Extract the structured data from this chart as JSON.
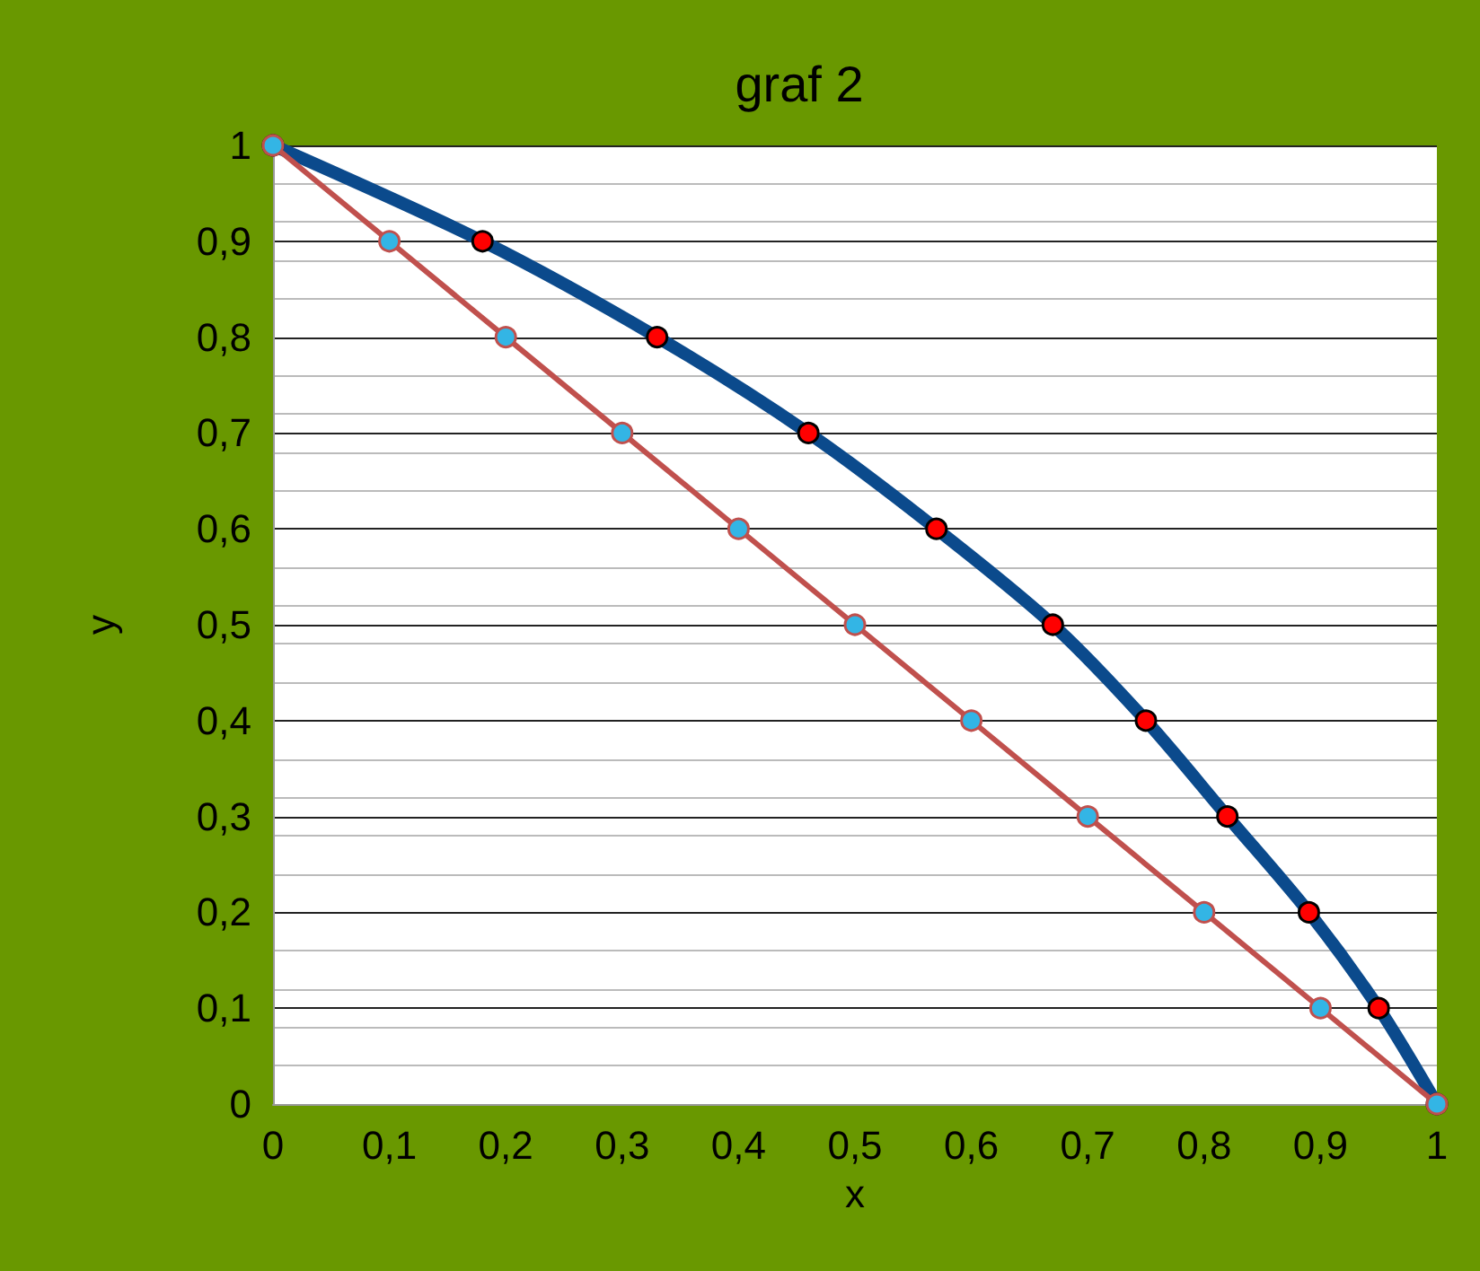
{
  "chart_data": {
    "type": "line",
    "title": "graf 2",
    "xlabel": "x",
    "ylabel": "y",
    "xlim": [
      0,
      1
    ],
    "ylim": [
      0,
      1
    ],
    "xticks": [
      0,
      {
        "value": 0.1,
        "label": "0,1"
      },
      {
        "value": 0.2,
        "label": "0,2"
      },
      {
        "value": 0.3,
        "label": "0,3"
      },
      {
        "value": 0.4,
        "label": "0,4"
      },
      {
        "value": 0.5,
        "label": "0,5"
      },
      {
        "value": 0.6,
        "label": "0,6"
      },
      {
        "value": 0.7,
        "label": "0,7"
      },
      {
        "value": 0.8,
        "label": "0,8"
      },
      {
        "value": 0.9,
        "label": "0,9"
      },
      1
    ],
    "yticks": [
      0,
      {
        "value": 0.1,
        "label": "0,1"
      },
      {
        "value": 0.2,
        "label": "0,2"
      },
      {
        "value": 0.3,
        "label": "0,3"
      },
      {
        "value": 0.4,
        "label": "0,4"
      },
      {
        "value": 0.5,
        "label": "0,5"
      },
      {
        "value": 0.6,
        "label": "0,6"
      },
      {
        "value": 0.7,
        "label": "0,7"
      },
      {
        "value": 0.8,
        "label": "0,8"
      },
      {
        "value": 0.9,
        "label": "0,9"
      },
      1
    ],
    "grid": "y",
    "marker": "circle",
    "line_style": "solid",
    "series": [
      {
        "color": "#0b4a8c",
        "x": [
          0,
          0.18,
          0.33,
          0.46,
          0.57,
          0.67,
          0.75,
          0.82,
          0.89,
          0.95,
          1
        ],
        "values": [
          1,
          0.9,
          0.8,
          0.7,
          0.6,
          0.5,
          0.4,
          0.3,
          0.2,
          0.1,
          0
        ]
      },
      {
        "color": "#c0504d",
        "x": [
          0,
          0.1,
          0.2,
          0.3,
          0.4,
          0.5,
          0.6,
          0.7,
          0.8,
          0.9,
          1
        ],
        "values": [
          1,
          0.9,
          0.8,
          0.7,
          0.6,
          0.5,
          0.4,
          0.3,
          0.2,
          0.1,
          0
        ]
      }
    ]
  }
}
